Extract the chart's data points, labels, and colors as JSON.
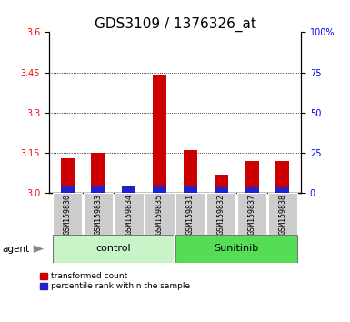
{
  "title": "GDS3109 / 1376326_at",
  "samples": [
    "GSM159830",
    "GSM159833",
    "GSM159834",
    "GSM159835",
    "GSM159831",
    "GSM159832",
    "GSM159837",
    "GSM159838"
  ],
  "red_values": [
    3.13,
    3.15,
    3.02,
    3.44,
    3.16,
    3.07,
    3.12,
    3.12
  ],
  "blue_heights": [
    0.025,
    0.025,
    0.025,
    0.03,
    0.025,
    0.022,
    0.022,
    0.022
  ],
  "ylim_left": [
    3.0,
    3.6
  ],
  "yticks_left": [
    3.0,
    3.15,
    3.3,
    3.45,
    3.6
  ],
  "yticks_right": [
    0,
    25,
    50,
    75,
    100
  ],
  "ytick_labels_right": [
    "0",
    "25",
    "50",
    "75",
    "100%"
  ],
  "groups": [
    {
      "label": "control",
      "indices": [
        0,
        1,
        2,
        3
      ],
      "color": "#c8f5c8"
    },
    {
      "label": "Sunitinib",
      "indices": [
        4,
        5,
        6,
        7
      ],
      "color": "#55dd55"
    }
  ],
  "bar_width": 0.45,
  "red_color": "#cc0000",
  "blue_color": "#2222cc",
  "base": 3.0,
  "agent_label": "agent",
  "legend_red": "transformed count",
  "legend_blue": "percentile rank within the sample",
  "title_fontsize": 11,
  "tick_fontsize": 7,
  "label_fontsize": 6,
  "group_fontsize": 8
}
